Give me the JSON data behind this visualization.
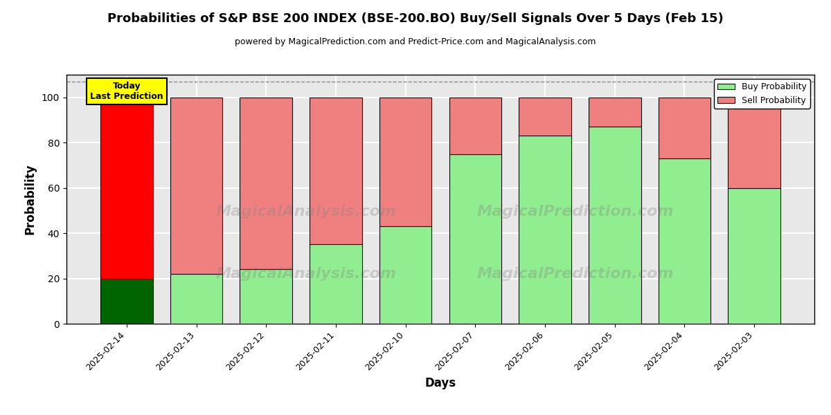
{
  "title": "Probabilities of S&P BSE 200 INDEX (BSE-200.BO) Buy/Sell Signals Over 5 Days (Feb 15)",
  "subtitle": "powered by MagicalPrediction.com and Predict-Price.com and MagicalAnalysis.com",
  "xlabel": "Days",
  "ylabel": "Probability",
  "categories": [
    "2025-02-14",
    "2025-02-13",
    "2025-02-12",
    "2025-02-11",
    "2025-02-10",
    "2025-02-07",
    "2025-02-06",
    "2025-02-05",
    "2025-02-04",
    "2025-02-03"
  ],
  "buy_values": [
    20,
    22,
    24,
    35,
    43,
    75,
    83,
    87,
    73,
    60
  ],
  "sell_values": [
    80,
    78,
    76,
    65,
    57,
    25,
    17,
    13,
    27,
    40
  ],
  "today_buy_color": "#006400",
  "today_sell_color": "#ff0000",
  "normal_buy_color": "#90ee90",
  "normal_sell_color": "#f08080",
  "today_annotation_text": "Today\nLast Prediction",
  "today_annotation_bg": "#ffff00",
  "watermark_text1": "MagicalAnalysis.com",
  "watermark_text2": "MagicalPrediction.com",
  "ylim": [
    0,
    110
  ],
  "dashed_line_y": 107,
  "legend_buy_label": "Buy Probability",
  "legend_sell_label": "Sell Probability",
  "bg_color": "#e8e8e8",
  "fig_bg_color": "#ffffff",
  "grid_color": "#ffffff",
  "bar_width": 0.75
}
